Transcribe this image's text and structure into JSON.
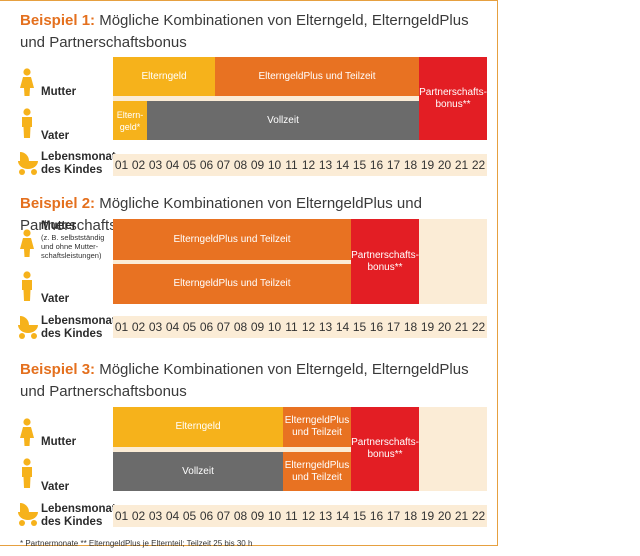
{
  "example1": {
    "title_num": "Beispiel 1:",
    "title_text": "Mögliche Kombinationen von Elterngeld, ElterngeldPlus und Partnerschaftsbonus",
    "mutter": "Mutter",
    "vater": "Vater",
    "bar_elterngeld": "Elterngeld",
    "bar_plus_teilzeit": "ElterngeldPlus und Teilzeit",
    "bar_partnerschaftsbonus": "Partnerschafts-bonus**",
    "bar_elterngeld_vater": "Eltern-geld*",
    "bar_vollzeit": "Vollzeit"
  },
  "example2": {
    "title_num": "Beispiel 2:",
    "title_text": "Mögliche Kombinationen von ElterngeldPlus und Partnerschaftsbonus",
    "mutter": "Mutter",
    "mutter_note": "(z. B. selbstständig und ohne Mutter-schaftsleistungen)",
    "vater": "Vater",
    "bar_plus_teilzeit_mutter": "ElterngeldPlus und Teilzeit",
    "bar_plus_teilzeit_vater": "ElterngeldPlus und Teilzeit",
    "bar_partnerschaftsbonus": "Partnerschafts-bonus**"
  },
  "example3": {
    "title_num": "Beispiel 3:",
    "title_text": "Mögliche Kombinationen von Elterngeld, ElterngeldPlus und Partnerschaftsbonus",
    "mutter": "Mutter",
    "vater": "Vater",
    "bar_elterngeld": "Elterngeld",
    "bar_plus_teilzeit_mutter": "ElterngeldPlus und Teilzeit",
    "bar_vollzeit": "Vollzeit",
    "bar_plus_teilzeit_vater": "ElterngeldPlus und Teilzeit",
    "bar_partnerschaftsbonus": "Partnerschafts-bonus**"
  },
  "lebensmonat_label": "Lebensmonat des Kindes",
  "months": [
    "01",
    "02",
    "03",
    "04",
    "05",
    "06",
    "07",
    "08",
    "09",
    "10",
    "11",
    "12",
    "13",
    "14",
    "15",
    "16",
    "17",
    "18",
    "19",
    "20",
    "21",
    "22"
  ],
  "footnote": "*  Partnermonate   ** ElterngeldPlus je Elternteil; Teilzeit 25 bis 30 h",
  "colors": {
    "elterngeld": "#f6b21b",
    "elterngeldplus": "#e87222",
    "partnerschaftsbonus": "#e31e24",
    "vollzeit": "#6b6b6b",
    "accent": "#e4701e",
    "grid_bg": "#fbecd6"
  },
  "icons": [
    "woman-icon",
    "man-icon",
    "baby-stroller-icon"
  ]
}
